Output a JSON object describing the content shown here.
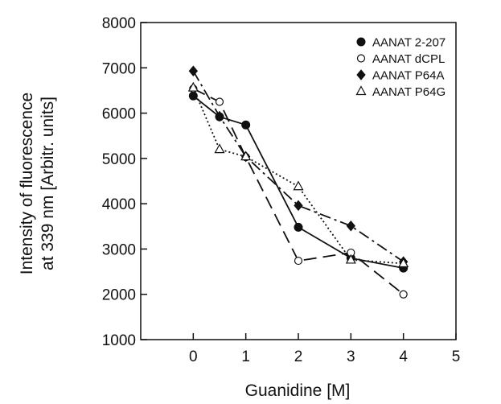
{
  "chart_data": {
    "type": "line",
    "title": "",
    "xlabel": "Guanidine [M]",
    "ylabel_line1": "Intensity of fluorescence",
    "ylabel_line2": "at 339 nm [Arbitr. units]",
    "xlim": [
      -1,
      5
    ],
    "ylim": [
      1000,
      8000
    ],
    "xticks": [
      0,
      1,
      2,
      3,
      4,
      5
    ],
    "yticks": [
      1000,
      2000,
      3000,
      4000,
      5000,
      6000,
      7000,
      8000
    ],
    "grid": false,
    "legend_position": "top-right",
    "series": [
      {
        "name": "AANAT 2-207",
        "marker": "filled-circle",
        "line_style": "solid",
        "points": [
          [
            0,
            6380
          ],
          [
            0.5,
            5920
          ],
          [
            1,
            5740
          ],
          [
            2,
            3480
          ],
          [
            3,
            2800
          ],
          [
            4,
            2580
          ]
        ]
      },
      {
        "name": "AANAT dCPL",
        "marker": "open-circle",
        "line_style": "long-dash",
        "points": [
          [
            0,
            6540
          ],
          [
            0.5,
            6250
          ],
          [
            1,
            5030
          ],
          [
            2,
            2740
          ],
          [
            3,
            2920
          ],
          [
            4,
            2000
          ]
        ]
      },
      {
        "name": "AANAT P64A",
        "marker": "filled-diamond",
        "line_style": "dash-dot",
        "points": [
          [
            0,
            6930
          ],
          [
            0.5,
            5930
          ],
          [
            1,
            5040
          ],
          [
            2,
            3960
          ],
          [
            3,
            3510
          ],
          [
            4,
            2720
          ]
        ]
      },
      {
        "name": "AANAT P64G",
        "marker": "open-triangle",
        "line_style": "dotted",
        "points": [
          [
            0,
            6560
          ],
          [
            0.5,
            5200
          ],
          [
            1,
            5040
          ],
          [
            2,
            4380
          ],
          [
            3,
            2760
          ],
          [
            4,
            2680
          ]
        ]
      }
    ]
  }
}
